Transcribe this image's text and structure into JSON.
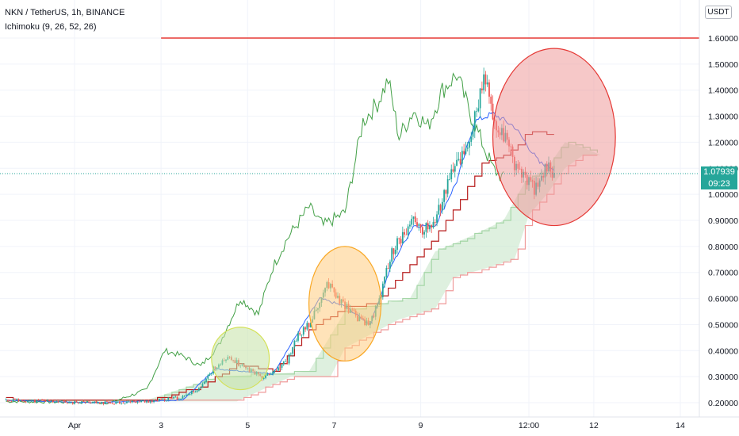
{
  "header": {
    "symbol_line": "NKN / TetherUS, 1h, BINANCE",
    "indicator_line": "Ichimoku (9, 26, 52, 26)"
  },
  "currency_button": "USDT",
  "last_price": "1.07939",
  "countdown": "09:23",
  "colors": {
    "up": "#26a69a",
    "down": "#ef5350",
    "tenkan": "#2962ff",
    "kijun": "#b71c1c",
    "chikou": "#43a047",
    "span_a": "#a5d6a7",
    "span_b": "#ef9a9a",
    "cloud": "#c8e6c9",
    "hline": "#e53935",
    "circle_green": "#c5e1a5",
    "circle_orange": "#ffcc80",
    "circle_red": "#ef9a9a",
    "axis_text": "#131722"
  },
  "chart_data": {
    "type": "candlestick",
    "title": "NKN / TetherUS, 1h, BINANCE",
    "indicator": "Ichimoku (9, 26, 52, 26)",
    "y_ticks": [
      "1.60000",
      "1.50000",
      "1.40000",
      "1.30000",
      "1.20000",
      "1.10000",
      "1.00000",
      "0.90000",
      "0.80000",
      "0.70000",
      "0.60000",
      "0.50000",
      "0.40000",
      "0.30000",
      "0.20000"
    ],
    "y_tick_values": [
      1.6,
      1.5,
      1.4,
      1.3,
      1.2,
      1.1,
      1.0,
      0.9,
      0.8,
      0.7,
      0.6,
      0.5,
      0.4,
      0.3,
      0.2
    ],
    "x_ticks": [
      "Apr",
      "3",
      "5",
      "7",
      "9",
      "12:00",
      "12",
      "14"
    ],
    "x_tick_hours": [
      0,
      48,
      96,
      144,
      192,
      252,
      288,
      336
    ],
    "ylim": [
      0.19,
      1.65
    ],
    "xlim": [
      -38,
      362
    ],
    "horizontal_line": 1.6,
    "last_price": 1.07939,
    "close_path": [
      [
        -38,
        0.21
      ],
      [
        -10,
        0.205
      ],
      [
        0,
        0.2
      ],
      [
        20,
        0.2
      ],
      [
        40,
        0.205
      ],
      [
        60,
        0.22
      ],
      [
        70,
        0.26
      ],
      [
        78,
        0.34
      ],
      [
        86,
        0.37
      ],
      [
        96,
        0.33
      ],
      [
        104,
        0.3
      ],
      [
        110,
        0.32
      ],
      [
        118,
        0.36
      ],
      [
        124,
        0.46
      ],
      [
        130,
        0.5
      ],
      [
        136,
        0.58
      ],
      [
        140,
        0.66
      ],
      [
        146,
        0.6
      ],
      [
        152,
        0.56
      ],
      [
        158,
        0.52
      ],
      [
        164,
        0.5
      ],
      [
        170,
        0.62
      ],
      [
        176,
        0.78
      ],
      [
        182,
        0.84
      ],
      [
        188,
        0.9
      ],
      [
        194,
        0.86
      ],
      [
        200,
        0.9
      ],
      [
        206,
        1.02
      ],
      [
        212,
        1.12
      ],
      [
        218,
        1.18
      ],
      [
        222,
        1.3
      ],
      [
        228,
        1.45
      ],
      [
        232,
        1.28
      ],
      [
        238,
        1.22
      ],
      [
        244,
        1.12
      ],
      [
        250,
        1.06
      ],
      [
        256,
        1.02
      ],
      [
        262,
        1.1
      ],
      [
        266,
        1.08
      ]
    ],
    "series": [
      {
        "name": "Tenkan",
        "points": [
          [
            -38,
            0.21
          ],
          [
            10,
            0.2
          ],
          [
            60,
            0.21
          ],
          [
            78,
            0.33
          ],
          [
            96,
            0.32
          ],
          [
            110,
            0.31
          ],
          [
            124,
            0.47
          ],
          [
            136,
            0.6
          ],
          [
            150,
            0.57
          ],
          [
            164,
            0.5
          ],
          [
            176,
            0.73
          ],
          [
            188,
            0.88
          ],
          [
            200,
            0.88
          ],
          [
            212,
            1.05
          ],
          [
            222,
            1.28
          ],
          [
            232,
            1.31
          ],
          [
            244,
            1.26
          ],
          [
            250,
            1.2
          ],
          [
            258,
            1.12
          ],
          [
            266,
            1.1
          ]
        ]
      },
      {
        "name": "Kijun",
        "points": [
          [
            -38,
            0.215
          ],
          [
            40,
            0.205
          ],
          [
            70,
            0.26
          ],
          [
            90,
            0.35
          ],
          [
            110,
            0.32
          ],
          [
            130,
            0.48
          ],
          [
            150,
            0.57
          ],
          [
            166,
            0.58
          ],
          [
            182,
            0.7
          ],
          [
            200,
            0.84
          ],
          [
            214,
            0.98
          ],
          [
            226,
            1.12
          ],
          [
            240,
            1.15
          ],
          [
            252,
            1.24
          ],
          [
            266,
            1.23
          ]
        ]
      },
      {
        "name": "Chikou",
        "points": [
          [
            -38,
            0.205
          ],
          [
            20,
            0.2
          ],
          [
            40,
            0.25
          ],
          [
            50,
            0.4
          ],
          [
            60,
            0.38
          ],
          [
            70,
            0.34
          ],
          [
            80,
            0.42
          ],
          [
            92,
            0.6
          ],
          [
            102,
            0.54
          ],
          [
            110,
            0.72
          ],
          [
            118,
            0.83
          ],
          [
            130,
            0.95
          ],
          [
            138,
            0.88
          ],
          [
            150,
            0.93
          ],
          [
            160,
            1.28
          ],
          [
            168,
            1.35
          ],
          [
            174,
            1.44
          ],
          [
            180,
            1.22
          ],
          [
            188,
            1.32
          ],
          [
            196,
            1.26
          ],
          [
            204,
            1.4
          ],
          [
            212,
            1.46
          ],
          [
            220,
            1.3
          ],
          [
            226,
            1.2
          ],
          [
            232,
            1.1
          ],
          [
            238,
            1.06
          ]
        ]
      },
      {
        "name": "Senkou A",
        "points": [
          [
            -38,
            0.21
          ],
          [
            40,
            0.21
          ],
          [
            80,
            0.3
          ],
          [
            110,
            0.31
          ],
          [
            130,
            0.32
          ],
          [
            150,
            0.55
          ],
          [
            170,
            0.58
          ],
          [
            186,
            0.6
          ],
          [
            200,
            0.78
          ],
          [
            220,
            0.84
          ],
          [
            238,
            0.9
          ],
          [
            250,
            1.05
          ],
          [
            262,
            1.1
          ],
          [
            272,
            1.2
          ],
          [
            282,
            1.18
          ],
          [
            292,
            1.15
          ]
        ]
      },
      {
        "name": "Senkou B",
        "points": [
          [
            -38,
            0.205
          ],
          [
            40,
            0.205
          ],
          [
            90,
            0.205
          ],
          [
            120,
            0.3
          ],
          [
            142,
            0.3
          ],
          [
            150,
            0.41
          ],
          [
            180,
            0.52
          ],
          [
            200,
            0.56
          ],
          [
            210,
            0.68
          ],
          [
            230,
            0.72
          ],
          [
            244,
            0.75
          ],
          [
            252,
            0.92
          ],
          [
            262,
            1.0
          ],
          [
            272,
            1.1
          ],
          [
            282,
            1.15
          ],
          [
            292,
            1.15
          ]
        ]
      }
    ],
    "annotations": [
      {
        "shape": "ellipse",
        "color": "green",
        "cx_hour": 92,
        "cy": 0.37,
        "rx_hours": 16,
        "ry": 0.12
      },
      {
        "shape": "ellipse",
        "color": "orange",
        "cx_hour": 150,
        "cy": 0.58,
        "rx_hours": 20,
        "ry": 0.22
      },
      {
        "shape": "ellipse",
        "color": "red",
        "cx_hour": 266,
        "cy": 1.22,
        "rx_hours": 34,
        "ry": 0.34
      }
    ]
  }
}
